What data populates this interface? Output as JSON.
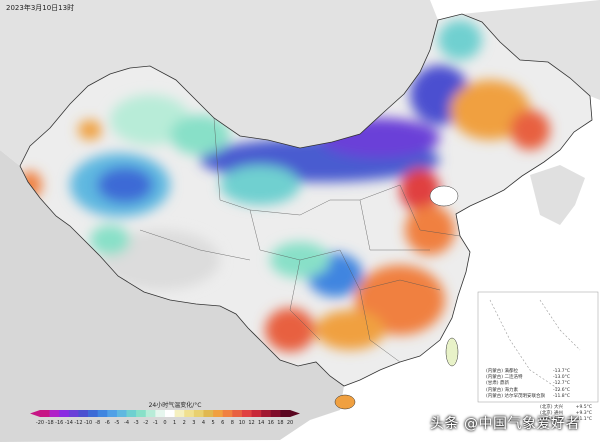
{
  "timestamp": "2023年3月10日13时",
  "legend": {
    "title": "24小时气温变化/°C",
    "ticks": [
      "-20",
      "-18",
      "-16",
      "-14",
      "-12",
      "-10",
      "-8",
      "-6",
      "-5",
      "-4",
      "-3",
      "-2",
      "-1",
      "0",
      "1",
      "2",
      "3",
      "4",
      "5",
      "6",
      "8",
      "10",
      "12",
      "14",
      "16",
      "18",
      "20"
    ],
    "colors": [
      "#c71585",
      "#b020c8",
      "#8a2be2",
      "#6a3fd8",
      "#4b50d0",
      "#3c6ad6",
      "#3f85e0",
      "#50a0e6",
      "#5fb8e0",
      "#6fd0d0",
      "#88e0c8",
      "#b8ecd8",
      "#e6f6ee",
      "#ffffff",
      "#f5f0c0",
      "#f0e090",
      "#e8d070",
      "#e0b850",
      "#f0a040",
      "#f08040",
      "#e86040",
      "#e04040",
      "#c82838",
      "#a01830",
      "#800c2a",
      "#5a0620"
    ]
  },
  "stats": [
    {
      "label": "(内蒙古) 满都拉",
      "value": "-13.7°C"
    },
    {
      "label": "(内蒙古) 二连浩特",
      "value": "-13.0°C"
    },
    {
      "label": "(甘肃) 鼎新",
      "value": "-12.7°C"
    },
    {
      "label": "(内蒙古) 海力素",
      "value": "-12.6°C"
    },
    {
      "label": "(内蒙古) 达尔罕茂明安联合旗",
      "value": "-11.8°C"
    }
  ],
  "stats_warm": [
    {
      "label": "(北京) 大兴",
      "value": "+9.5°C"
    },
    {
      "label": "(北京) 通州",
      "value": "+9.3°C"
    },
    {
      "label": "(山东) 日照",
      "value": "+11.1°C"
    }
  ],
  "watermark": "头条 @中国气象爱好者"
}
